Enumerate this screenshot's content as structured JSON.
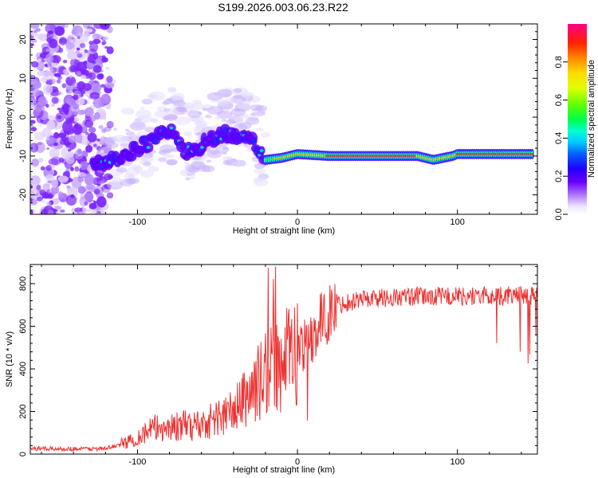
{
  "chart_data": [
    {
      "type": "heatmap",
      "title": "S199.2026.003.06.23.R22",
      "xlabel": "Height of straight line (km)",
      "ylabel": "Frequency (Hz)",
      "xlim": [
        -167,
        150
      ],
      "ylim": [
        -25,
        24
      ],
      "x_ticks": [
        -100,
        0,
        100
      ],
      "y_ticks": [
        -20,
        -10,
        0,
        10,
        20
      ],
      "colorbar": {
        "label": "Normalized spectral amplitude",
        "range": [
          0.0,
          1.0
        ],
        "ticks": [
          "0.0",
          "0.2",
          "0.4",
          "0.6",
          "0.8"
        ]
      },
      "ridge": [
        {
          "x": -125,
          "freq": -12
        },
        {
          "x": -110,
          "freq": -10.5
        },
        {
          "x": -95,
          "freq": -7
        },
        {
          "x": -80,
          "freq": -3
        },
        {
          "x": -70,
          "freq": -9
        },
        {
          "x": -55,
          "freq": -6
        },
        {
          "x": -45,
          "freq": -4
        },
        {
          "x": -30,
          "freq": -6
        },
        {
          "x": -20,
          "freq": -11
        },
        {
          "x": -10,
          "freq": -10.5
        },
        {
          "x": 0,
          "freq": -9.5
        },
        {
          "x": 20,
          "freq": -10
        },
        {
          "x": 75,
          "freq": -10
        },
        {
          "x": 85,
          "freq": -11
        },
        {
          "x": 97,
          "freq": -10
        },
        {
          "x": 100,
          "freq": -9.5
        },
        {
          "x": 148,
          "freq": -9.5
        }
      ]
    },
    {
      "type": "line",
      "xlabel": "Height of straight line (km)",
      "ylabel": "SNR (10 * v/v)",
      "xlim": [
        -167,
        150
      ],
      "ylim": [
        0,
        890
      ],
      "x_ticks": [
        -100,
        0,
        100
      ],
      "y_ticks": [
        0,
        200,
        400,
        600,
        800
      ],
      "line_color": "#ee3333",
      "envelope": [
        {
          "x": -167,
          "snr": 25
        },
        {
          "x": -120,
          "snr": 25
        },
        {
          "x": -105,
          "snr": 60
        },
        {
          "x": -90,
          "snr": 120
        },
        {
          "x": -60,
          "snr": 140
        },
        {
          "x": -40,
          "snr": 200
        },
        {
          "x": -25,
          "snr": 330
        },
        {
          "x": -15,
          "snr": 420
        },
        {
          "x": -5,
          "snr": 450
        },
        {
          "x": 5,
          "snr": 520
        },
        {
          "x": 15,
          "snr": 620
        },
        {
          "x": 25,
          "snr": 700
        },
        {
          "x": 40,
          "snr": 730
        },
        {
          "x": 80,
          "snr": 740
        },
        {
          "x": 150,
          "snr": 745
        }
      ]
    }
  ]
}
